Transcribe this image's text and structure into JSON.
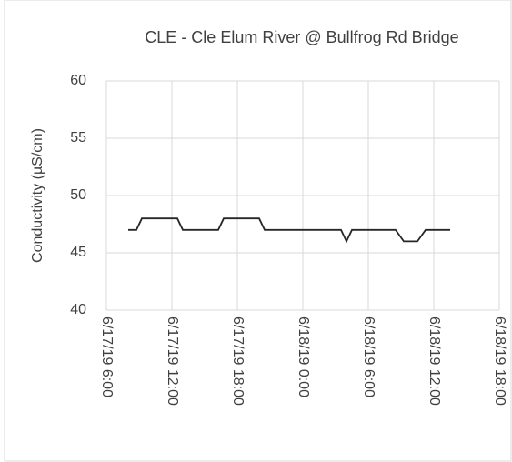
{
  "chart_data": {
    "type": "line",
    "title": "CLE - Cle Elum River @ Bullfrog Rd Bridge",
    "y_label": "Conductivity (µS/cm)",
    "x": [
      "6/17/19 8:00",
      "6/17/19 8:45",
      "6/17/19 9:15",
      "6/17/19 12:30",
      "6/17/19 13:00",
      "6/17/19 16:15",
      "6/17/19 16:45",
      "6/17/19 20:00",
      "6/17/19 20:30",
      "6/18/19 3:30",
      "6/18/19 4:00",
      "6/18/19 4:30",
      "6/18/19 8:30",
      "6/18/19 9:15",
      "6/18/19 10:30",
      "6/18/19 11:15",
      "6/18/19 13:30"
    ],
    "series": [
      {
        "name": "Conductivity",
        "color": "#262626",
        "values": [
          47,
          47,
          48,
          48,
          47,
          47,
          48,
          48,
          47,
          47,
          46,
          47,
          47,
          46,
          46,
          47,
          47
        ]
      }
    ],
    "xlim": [
      "6/17/19 6:00",
      "6/18/19 18:00"
    ],
    "xticks": [
      "6/17/19 6:00",
      "6/17/19 12:00",
      "6/17/19 18:00",
      "6/18/19 0:00",
      "6/18/19 6:00",
      "6/18/19 12:00",
      "6/18/19 18:00"
    ],
    "ylim": [
      40,
      60
    ],
    "yticks": [
      40,
      45,
      50,
      55,
      60
    ],
    "grid": true
  }
}
